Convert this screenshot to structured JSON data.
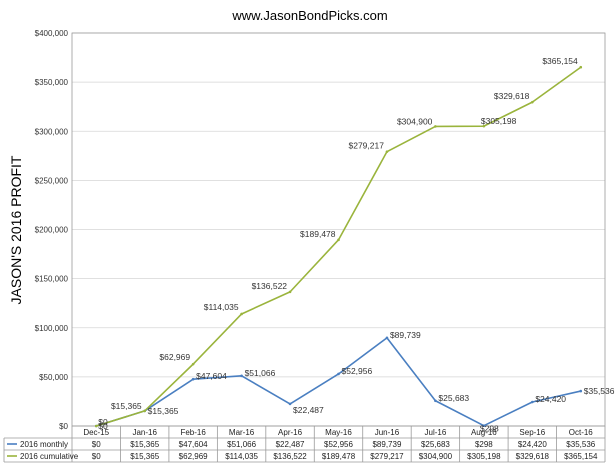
{
  "chart_data": {
    "type": "line",
    "title": "www.JasonBondPicks.com",
    "ylabel": "JASON'S 2016 PROFIT",
    "xlabel": "",
    "ylim": [
      0,
      400000
    ],
    "yticks": [
      "$0",
      "$50,000",
      "$100,000",
      "$150,000",
      "$200,000",
      "$250,000",
      "$300,000",
      "$350,000",
      "$400,000"
    ],
    "ytick_values": [
      0,
      50000,
      100000,
      150000,
      200000,
      250000,
      300000,
      350000,
      400000
    ],
    "grid": true,
    "legend": "data-table-below",
    "categories": [
      "Dec-15",
      "Jan-16",
      "Feb-16",
      "Mar-16",
      "Apr-16",
      "May-16",
      "Jun-16",
      "Jul-16",
      "Aug-16",
      "Sep-16",
      "Oct-16"
    ],
    "series": [
      {
        "name": "2016 monthly",
        "color": "#4a7fc1",
        "values": [
          0,
          15365,
          47604,
          51066,
          22487,
          52956,
          89739,
          25683,
          298,
          24420,
          35536
        ],
        "labels": [
          "$0",
          "$15,365",
          "$47,604",
          "$51,066",
          "$22,487",
          "$52,956",
          "$89,739",
          "$25,683",
          "$298",
          "$24,420",
          "$35,536"
        ]
      },
      {
        "name": "2016 cumulative",
        "color": "#9ab43c",
        "values": [
          0,
          15365,
          62969,
          114035,
          136522,
          189478,
          279217,
          304900,
          305198,
          329618,
          365154
        ],
        "labels": [
          "$0",
          "$15,365",
          "$62,969",
          "$114,035",
          "$136,522",
          "$189,478",
          "$279,217",
          "$304,900",
          "$305,198",
          "$329,618",
          "$365,154"
        ]
      }
    ]
  }
}
